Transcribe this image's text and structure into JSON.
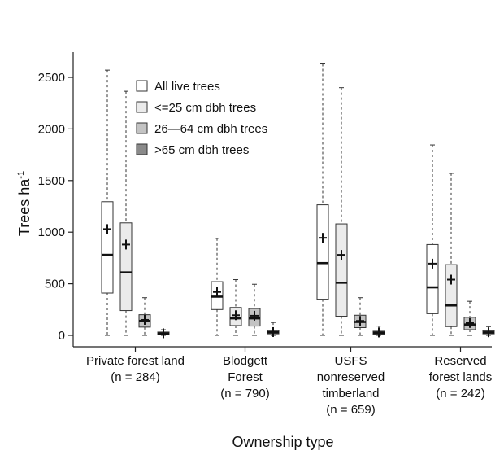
{
  "chart_data": {
    "type": "boxplot",
    "ylabel": "Trees ha",
    "ylabel_sup": "-1",
    "xlabel": "Ownership type",
    "ylim": [
      -90,
      2630
    ],
    "yticks": [
      0,
      500,
      1000,
      1500,
      2000,
      2500
    ],
    "categories": [
      {
        "lines": [
          "Private forest land",
          "(n = 284)"
        ]
      },
      {
        "lines": [
          "Blodgett",
          "Forest",
          "(n = 790)"
        ]
      },
      {
        "lines": [
          "USFS",
          "nonreserved",
          "timberland",
          "(n = 659)"
        ]
      },
      {
        "lines": [
          "Reserved",
          "forest lands",
          "(n = 242)"
        ]
      }
    ],
    "series": [
      {
        "name": "All live trees",
        "color": "#ffffff",
        "boxes": [
          {
            "whislo": 0,
            "q1": 410,
            "median": 780,
            "q3": 1295,
            "whishi": 2570,
            "mean": 1030
          },
          {
            "whislo": 0,
            "q1": 250,
            "median": 375,
            "q3": 520,
            "whishi": 940,
            "mean": 420
          },
          {
            "whislo": 0,
            "q1": 350,
            "median": 700,
            "q3": 1265,
            "whishi": 2630,
            "mean": 945
          },
          {
            "whislo": 0,
            "q1": 210,
            "median": 465,
            "q3": 880,
            "whishi": 1845,
            "mean": 695
          }
        ]
      },
      {
        "name": "<=25 cm dbh trees",
        "color": "#ebebeb",
        "boxes": [
          {
            "whislo": 0,
            "q1": 240,
            "median": 610,
            "q3": 1090,
            "whishi": 2365,
            "mean": 880
          },
          {
            "whislo": 0,
            "q1": 95,
            "median": 165,
            "q3": 270,
            "whishi": 540,
            "mean": 195
          },
          {
            "whislo": 0,
            "q1": 185,
            "median": 510,
            "q3": 1080,
            "whishi": 2400,
            "mean": 780
          },
          {
            "whislo": 0,
            "q1": 85,
            "median": 290,
            "q3": 685,
            "whishi": 1570,
            "mean": 540
          }
        ]
      },
      {
        "name": "26—64 cm dbh trees",
        "color": "#c3c3c3",
        "boxes": [
          {
            "whislo": 0,
            "q1": 80,
            "median": 140,
            "q3": 200,
            "whishi": 365,
            "mean": 150
          },
          {
            "whislo": 0,
            "q1": 90,
            "median": 165,
            "q3": 260,
            "whishi": 495,
            "mean": 190
          },
          {
            "whislo": 0,
            "q1": 75,
            "median": 130,
            "q3": 195,
            "whishi": 365,
            "mean": 140
          },
          {
            "whislo": 0,
            "q1": 55,
            "median": 105,
            "q3": 175,
            "whishi": 330,
            "mean": 120
          }
        ]
      },
      {
        "name": ">65 cm dbh trees",
        "color": "#8a8a8a",
        "boxes": [
          {
            "whislo": 0,
            "q1": 8,
            "median": 18,
            "q3": 32,
            "whishi": 55,
            "mean": 20
          },
          {
            "whislo": 0,
            "q1": 15,
            "median": 30,
            "q3": 48,
            "whishi": 125,
            "mean": 32
          },
          {
            "whislo": 0,
            "q1": 12,
            "median": 25,
            "q3": 40,
            "whishi": 90,
            "mean": 28
          },
          {
            "whislo": 0,
            "q1": 15,
            "median": 28,
            "q3": 45,
            "whishi": 85,
            "mean": 30
          }
        ]
      }
    ],
    "legend": {
      "position": "top-left"
    },
    "grid": false
  }
}
